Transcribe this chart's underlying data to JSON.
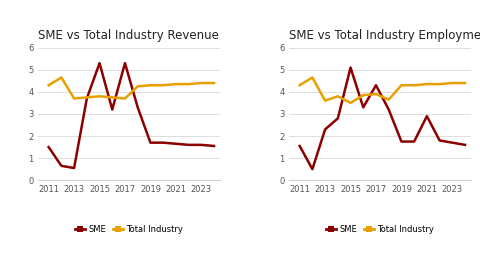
{
  "years": [
    2011,
    2012,
    2013,
    2014,
    2015,
    2016,
    2017,
    2018,
    2019,
    2020,
    2021,
    2022,
    2023,
    2024
  ],
  "revenue_sme": [
    1.5,
    0.65,
    0.55,
    3.7,
    5.3,
    3.2,
    5.3,
    3.3,
    1.7,
    1.7,
    1.65,
    1.6,
    1.6,
    1.55
  ],
  "revenue_total": [
    4.3,
    4.65,
    3.7,
    3.75,
    3.8,
    3.75,
    3.7,
    4.25,
    4.3,
    4.3,
    4.35,
    4.35,
    4.4,
    4.4
  ],
  "employ_sme": [
    1.55,
    0.5,
    2.3,
    2.8,
    5.1,
    3.3,
    4.3,
    3.2,
    1.75,
    1.75,
    2.9,
    1.8,
    1.7,
    1.6
  ],
  "employ_total": [
    4.3,
    4.65,
    3.6,
    3.8,
    3.5,
    3.85,
    3.9,
    3.65,
    4.3,
    4.3,
    4.35,
    4.35,
    4.4,
    4.4
  ],
  "sme_color": "#8B0000",
  "total_color": "#E8A000",
  "title_revenue": "SME vs Total Industry Revenue",
  "title_employ": "SME vs Total Industry Employment",
  "ylim": [
    0,
    6
  ],
  "yticks": [
    0,
    1,
    2,
    3,
    4,
    5,
    6
  ],
  "xticks": [
    2011,
    2013,
    2015,
    2017,
    2019,
    2021,
    2023
  ],
  "bg_color": "#ffffff",
  "legend_sme": "SME",
  "legend_total": "Total Industry",
  "linewidth": 1.8
}
